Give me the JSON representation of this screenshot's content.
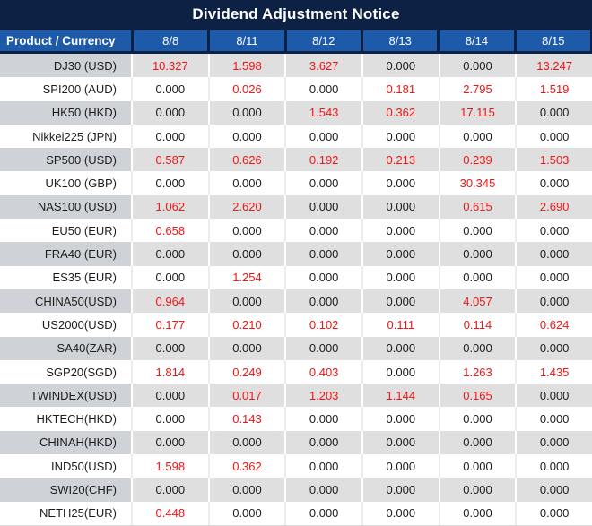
{
  "colors": {
    "navy": "#0d2145",
    "header_blue": "#1d5aa9",
    "row_gray": "#dfdfdf",
    "product_col_gray": "#cfd3d8",
    "highlight_red": "#ee1515",
    "text_black": "#1c1c1c",
    "header_text": "#ffffff"
  },
  "chart_data": {
    "type": "table",
    "title": "Dividend Adjustment Notice",
    "columns": [
      "Product / Currency",
      "8/8",
      "8/11",
      "8/12",
      "8/13",
      "8/14",
      "8/15"
    ],
    "value_color_rule": "nonzero values rendered red, zeros black",
    "rows": [
      {
        "product": "DJ30 (USD)",
        "values": [
          "10.327",
          "1.598",
          "3.627",
          "0.000",
          "0.000",
          "13.247"
        ]
      },
      {
        "product": "SPI200 (AUD)",
        "values": [
          "0.000",
          "0.026",
          "0.000",
          "0.181",
          "2.795",
          "1.519"
        ]
      },
      {
        "product": "HK50 (HKD)",
        "values": [
          "0.000",
          "0.000",
          "1.543",
          "0.362",
          "17.115",
          "0.000"
        ]
      },
      {
        "product": "Nikkei225 (JPN)",
        "values": [
          "0.000",
          "0.000",
          "0.000",
          "0.000",
          "0.000",
          "0.000"
        ]
      },
      {
        "product": "SP500 (USD)",
        "values": [
          "0.587",
          "0.626",
          "0.192",
          "0.213",
          "0.239",
          "1.503"
        ]
      },
      {
        "product": "UK100 (GBP)",
        "values": [
          "0.000",
          "0.000",
          "0.000",
          "0.000",
          "30.345",
          "0.000"
        ]
      },
      {
        "product": "NAS100 (USD)",
        "values": [
          "1.062",
          "2.620",
          "0.000",
          "0.000",
          "0.615",
          "2.690"
        ]
      },
      {
        "product": "EU50 (EUR)",
        "values": [
          "0.658",
          "0.000",
          "0.000",
          "0.000",
          "0.000",
          "0.000"
        ]
      },
      {
        "product": "FRA40 (EUR)",
        "values": [
          "0.000",
          "0.000",
          "0.000",
          "0.000",
          "0.000",
          "0.000"
        ]
      },
      {
        "product": "ES35 (EUR)",
        "values": [
          "0.000",
          "1.254",
          "0.000",
          "0.000",
          "0.000",
          "0.000"
        ]
      },
      {
        "product": "CHINA50(USD)",
        "values": [
          "0.964",
          "0.000",
          "0.000",
          "0.000",
          "4.057",
          "0.000"
        ]
      },
      {
        "product": "US2000(USD)",
        "values": [
          "0.177",
          "0.210",
          "0.102",
          "0.111",
          "0.114",
          "0.624"
        ]
      },
      {
        "product": "SA40(ZAR)",
        "values": [
          "0.000",
          "0.000",
          "0.000",
          "0.000",
          "0.000",
          "0.000"
        ]
      },
      {
        "product": "SGP20(SGD)",
        "values": [
          "1.814",
          "0.249",
          "0.403",
          "0.000",
          "1.263",
          "1.435"
        ]
      },
      {
        "product": "TWINDEX(USD)",
        "values": [
          "0.000",
          "0.017",
          "1.203",
          "1.144",
          "0.165",
          "0.000"
        ]
      },
      {
        "product": "HKTECH(HKD)",
        "values": [
          "0.000",
          "0.143",
          "0.000",
          "0.000",
          "0.000",
          "0.000"
        ]
      },
      {
        "product": "CHINAH(HKD)",
        "values": [
          "0.000",
          "0.000",
          "0.000",
          "0.000",
          "0.000",
          "0.000"
        ]
      },
      {
        "product": "IND50(USD)",
        "values": [
          "1.598",
          "0.362",
          "0.000",
          "0.000",
          "0.000",
          "0.000"
        ]
      },
      {
        "product": "SWI20(CHF)",
        "values": [
          "0.000",
          "0.000",
          "0.000",
          "0.000",
          "0.000",
          "0.000"
        ]
      },
      {
        "product": "NETH25(EUR)",
        "values": [
          "0.448",
          "0.000",
          "0.000",
          "0.000",
          "0.000",
          "0.000"
        ]
      }
    ]
  }
}
